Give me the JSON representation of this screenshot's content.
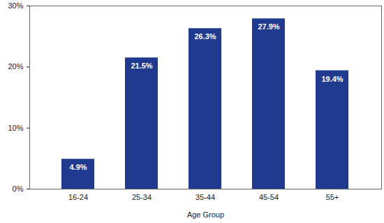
{
  "chart_data": {
    "type": "bar",
    "x_label": "Age Group",
    "categories": [
      "16-24",
      "25-34",
      "35-44",
      "45-54",
      "55+"
    ],
    "values": [
      4.9,
      21.5,
      26.3,
      27.9,
      19.4
    ],
    "value_labels": [
      "4.9%",
      "21.5%",
      "26.3%",
      "27.9%",
      "19.4%"
    ],
    "color": "#1f3a8f",
    "ylim": [
      0,
      30
    ],
    "yticks": [
      {
        "value": 0,
        "label": "0%"
      },
      {
        "value": 10,
        "label": "10%"
      },
      {
        "value": 20,
        "label": "20%"
      },
      {
        "value": 30,
        "label": "30%"
      }
    ],
    "grid": false,
    "data_labels": true
  }
}
